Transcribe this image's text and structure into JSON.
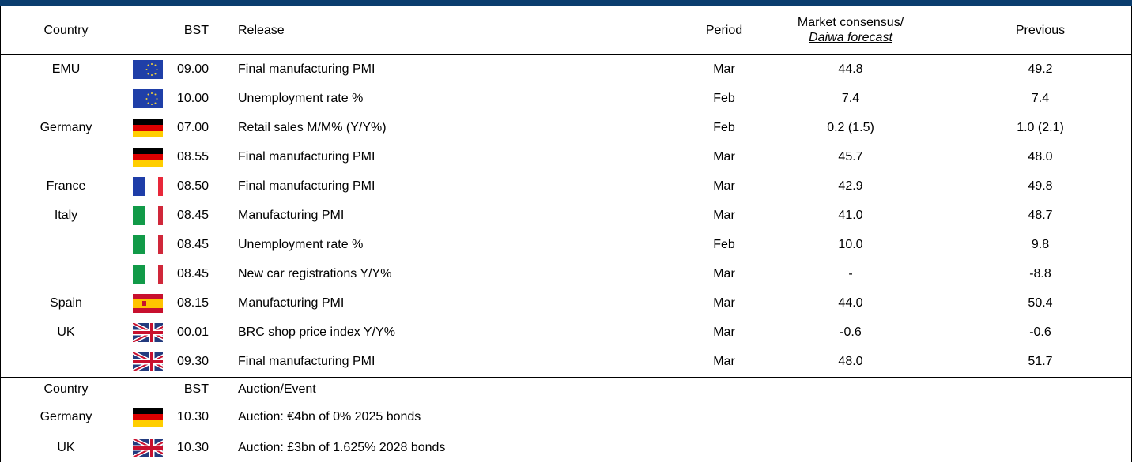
{
  "header": {
    "country": "Country",
    "bst": "BST",
    "release": "Release",
    "period": "Period",
    "consensus": "Market consensus/",
    "forecast": "Daiwa forecast",
    "previous": "Previous"
  },
  "rows": [
    {
      "country": "EMU",
      "bst": "09.00",
      "release": "Final manufacturing PMI",
      "period": "Mar",
      "consensus": "44.8",
      "previous": "49.2"
    },
    {
      "bst": "10.00",
      "release": "Unemployment rate %",
      "period": "Feb",
      "consensus": "7.4",
      "previous": "7.4"
    },
    {
      "country": "Germany",
      "bst": "07.00",
      "release": "Retail sales M/M% (Y/Y%)",
      "period": "Feb",
      "consensus": "0.2 (1.5)",
      "previous": "1.0 (2.1)"
    },
    {
      "bst": "08.55",
      "release": "Final manufacturing PMI",
      "period": "Mar",
      "consensus": "45.7",
      "previous": "48.0"
    },
    {
      "country": "France",
      "bst": "08.50",
      "release": "Final manufacturing PMI",
      "period": "Mar",
      "consensus": "42.9",
      "previous": "49.8"
    },
    {
      "country": "Italy",
      "bst": "08.45",
      "release": "Manufacturing PMI",
      "period": "Mar",
      "consensus": "41.0",
      "previous": "48.7"
    },
    {
      "bst": "08.45",
      "release": "Unemployment rate %",
      "period": "Feb",
      "consensus": "10.0",
      "previous": "9.8"
    },
    {
      "bst": "08.45",
      "release": "New car registrations Y/Y%",
      "period": "Mar",
      "consensus": "-",
      "previous": "-8.8"
    },
    {
      "country": "Spain",
      "bst": "08.15",
      "release": "Manufacturing PMI",
      "period": "Mar",
      "consensus": "44.0",
      "previous": "50.4"
    },
    {
      "country": "UK",
      "bst": "00.01",
      "release": "BRC shop price index Y/Y%",
      "period": "Mar",
      "consensus": "-0.6",
      "previous": "-0.6"
    },
    {
      "bst": "09.30",
      "release": "Final manufacturing PMI",
      "period": "Mar",
      "consensus": "48.0",
      "previous": "51.7"
    }
  ],
  "auction_header": {
    "country": "Country",
    "bst": "BST",
    "event": "Auction/Event"
  },
  "auctions": [
    {
      "country": "Germany",
      "bst": "10.30",
      "event": "Auction: €4bn of 0% 2025 bonds"
    },
    {
      "country": "UK",
      "bst": "10.30",
      "event": "Auction: £3bn of 1.625% 2028 bonds"
    }
  ]
}
